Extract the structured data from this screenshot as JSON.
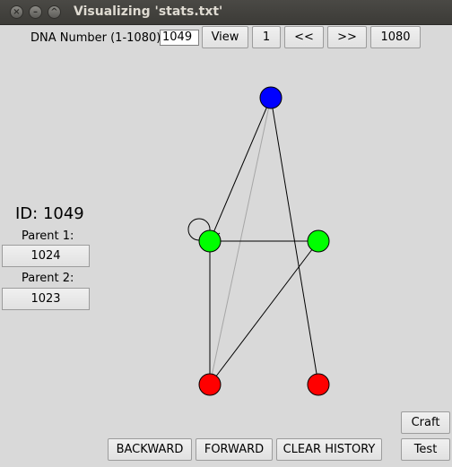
{
  "window": {
    "title": "Visualizing 'stats.txt'",
    "controls": [
      "close",
      "minimize",
      "maximize"
    ]
  },
  "toolbar": {
    "dna_label": "DNA Number (1-1080):",
    "dna_value": "1049",
    "view_label": "View",
    "first_label": "1",
    "prev_label": "<<",
    "next_label": ">>",
    "last_label": "1080"
  },
  "info": {
    "id_text": "ID: 1049",
    "parent1_label": "Parent 1:",
    "parent1_value": "1024",
    "parent2_label": "Parent 2:",
    "parent2_value": "1023"
  },
  "graph": {
    "nodes": [
      {
        "name": "blue-node",
        "color": "#0000ff"
      },
      {
        "name": "green-node-left",
        "color": "#00ff00"
      },
      {
        "name": "green-node-right",
        "color": "#00ff00"
      },
      {
        "name": "red-node-left",
        "color": "#ff0000"
      },
      {
        "name": "red-node-right",
        "color": "#ff0000"
      }
    ]
  },
  "bottom": {
    "backward_label": "BACKWARD",
    "forward_label": "FORWARD",
    "clear_label": "CLEAR HISTORY",
    "craft_label": "Craft",
    "test_label": "Test"
  }
}
